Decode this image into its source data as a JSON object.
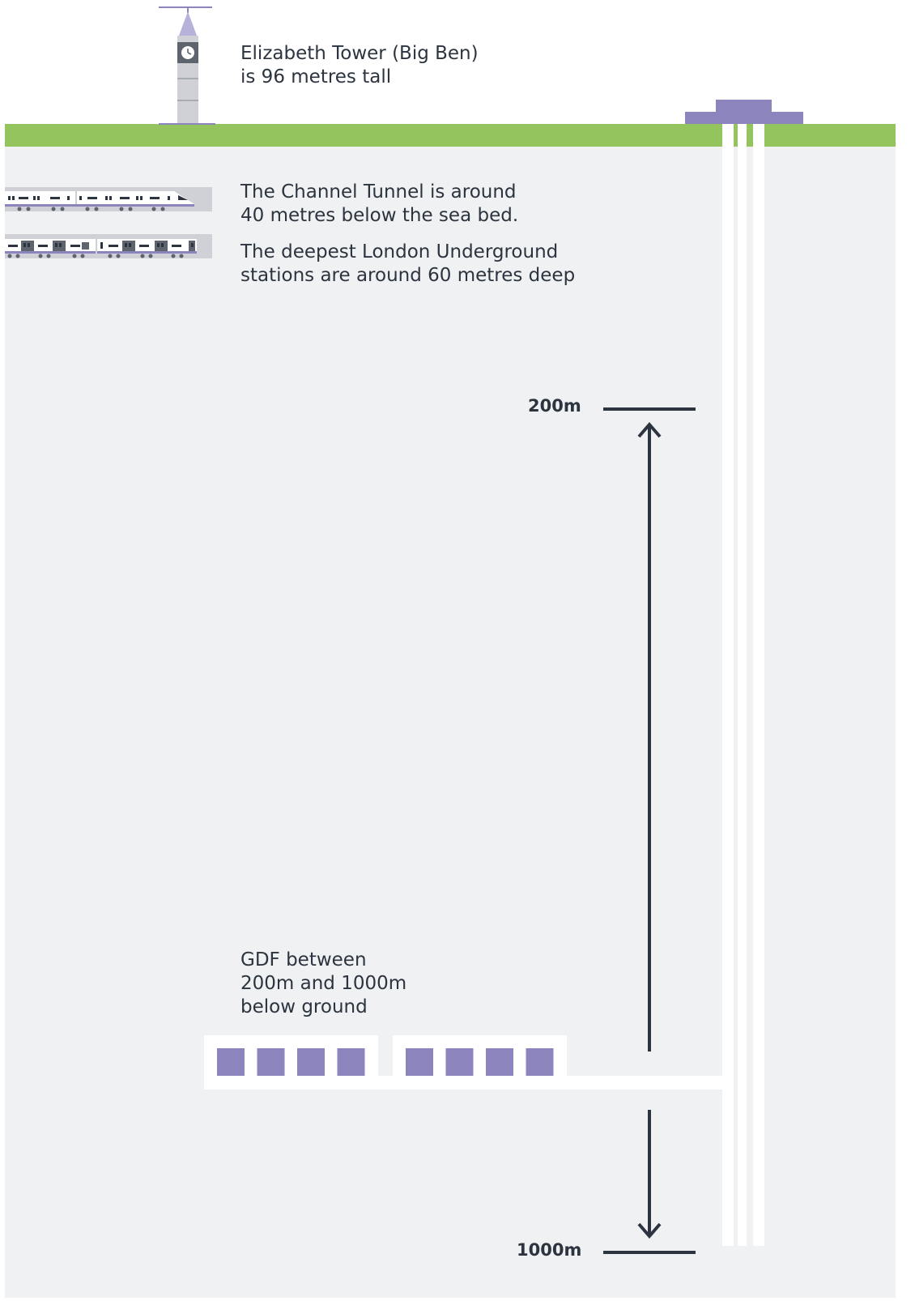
{
  "labels": {
    "tower": [
      "Elizabeth Tower (Big Ben)",
      "is 96 metres tall"
    ],
    "channel_tunnel": [
      "The Channel Tunnel is around",
      "40 metres below the sea bed."
    ],
    "underground": [
      "The deepest London Underground",
      "stations are around 60 metres deep"
    ],
    "gdf": [
      "GDF between",
      "200m and 1000m",
      "below ground"
    ]
  },
  "depth_markers": {
    "upper": "200m",
    "lower": "1000m"
  },
  "gdf_vault_groups": [
    4,
    4
  ],
  "colors": {
    "sky": "#ffffff",
    "grass": "#94c45e",
    "ground": "#f0f1f2",
    "accent_purple": "#8c85bd",
    "tower_grey": "#cfd1d7",
    "tunnel_white": "#ffffff",
    "ink": "#2c3440"
  },
  "icons": [
    "clock-tower-icon",
    "high-speed-train-icon",
    "underground-train-icon",
    "arrow-up-icon",
    "arrow-down-icon"
  ]
}
